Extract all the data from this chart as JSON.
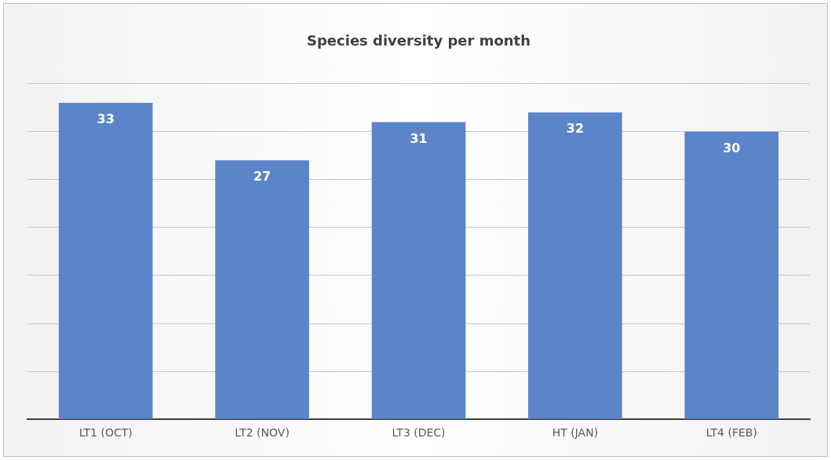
{
  "chart_data": {
    "type": "bar",
    "title": "Species diversity per month",
    "categories": [
      "LT1 (OCT)",
      "LT2 (NOV)",
      "LT3 (DEC)",
      "HT (JAN)",
      "LT4 (FEB)"
    ],
    "values": [
      33,
      27,
      31,
      32,
      30
    ],
    "color": "#5b84c9",
    "ylim": [
      0,
      35
    ],
    "yticks": [
      {
        "value": 0,
        "label": null
      },
      {
        "value": 5,
        "label": null
      },
      {
        "value": 10,
        "label": null
      },
      {
        "value": 15,
        "label": null
      },
      {
        "value": 20,
        "label": null
      },
      {
        "value": 25,
        "label": null
      },
      {
        "value": 30,
        "label": null
      },
      {
        "value": 35,
        "label": null
      }
    ],
    "grid": "y",
    "tick_labels": "x",
    "data_labels": true,
    "legend": false
  }
}
